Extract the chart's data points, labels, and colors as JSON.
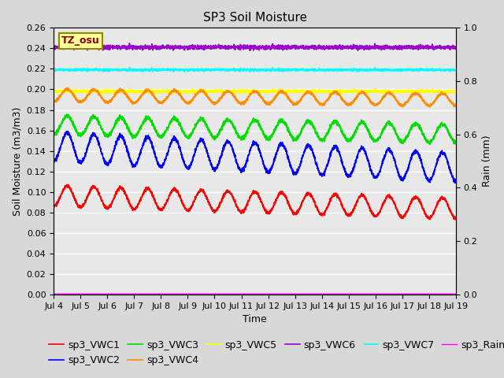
{
  "title": "SP3 Soil Moisture",
  "xlabel": "Time",
  "ylabel_left": "Soil Moisture (m3/m3)",
  "ylabel_right": "Rain (mm)",
  "ylim_left": [
    0.0,
    0.26
  ],
  "ylim_right": [
    0.0,
    1.0
  ],
  "xtick_labels": [
    "Jul 4",
    "Jul 5",
    "Jul 6",
    "Jul 7",
    "Jul 8",
    "Jul 9",
    "Jul 10",
    "Jul 11",
    "Jul 12",
    "Jul 13",
    "Jul 14",
    "Jul 15",
    "Jul 16",
    "Jul 17",
    "Jul 18",
    "Jul 19"
  ],
  "annotation_text": "TZ_osu",
  "annotation_color": "#8B0000",
  "annotation_bg": "#FFFF99",
  "annotation_border": "#8B8B00",
  "series_colors": {
    "sp3_VWC1": "#FF0000",
    "sp3_VWC2": "#0000FF",
    "sp3_VWC3": "#00DD00",
    "sp3_VWC4": "#FF8C00",
    "sp3_VWC5": "#FFFF00",
    "sp3_VWC6": "#9900CC",
    "sp3_VWC7": "#00FFFF",
    "sp3_Rain": "#FF00FF"
  },
  "legend_fontsize": 9,
  "title_fontsize": 11,
  "tick_fontsize": 8,
  "label_fontsize": 9,
  "bg_color": "#D8D8D8",
  "plot_bg_color": "#E8E8E8"
}
